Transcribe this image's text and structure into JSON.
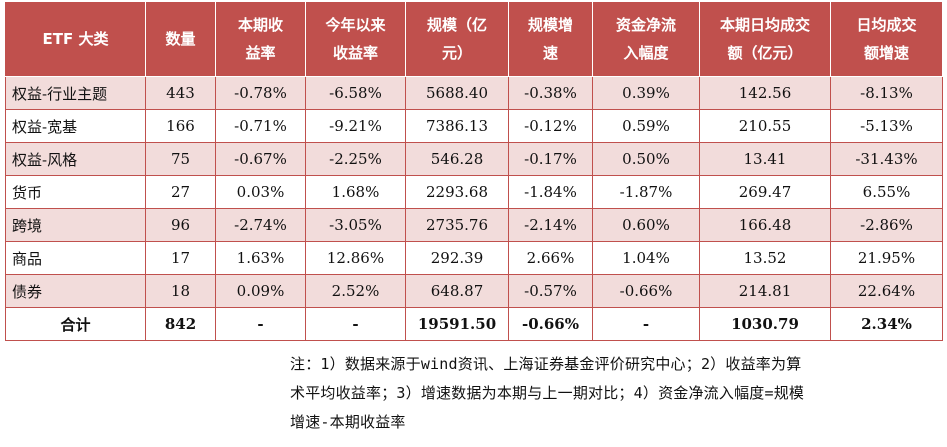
{
  "table": {
    "headers": [
      [
        "ETF 大类"
      ],
      [
        "数量"
      ],
      [
        "本期收",
        "益率"
      ],
      [
        "今年以来",
        "收益率"
      ],
      [
        "规模（亿",
        "元）"
      ],
      [
        "规模增",
        "速"
      ],
      [
        "资金净流",
        "入幅度"
      ],
      [
        "本期日均成交",
        "额（亿元）"
      ],
      [
        "日均成交",
        "额增速"
      ]
    ],
    "rows": [
      [
        "权益-行业主题",
        "443",
        "-0.78%",
        "-6.58%",
        "5688.40",
        "-0.38%",
        "0.39%",
        "142.56",
        "-8.13%"
      ],
      [
        "权益-宽基",
        "166",
        "-0.71%",
        "-9.21%",
        "7386.13",
        "-0.12%",
        "0.59%",
        "210.55",
        "-5.13%"
      ],
      [
        "权益-风格",
        "75",
        "-0.67%",
        "-2.25%",
        "546.28",
        "-0.17%",
        "0.50%",
        "13.41",
        "-31.43%"
      ],
      [
        "货币",
        "27",
        "0.03%",
        "1.68%",
        "2293.68",
        "-1.84%",
        "-1.87%",
        "269.47",
        "6.55%"
      ],
      [
        "跨境",
        "96",
        "-2.74%",
        "-3.05%",
        "2735.76",
        "-2.14%",
        "0.60%",
        "166.48",
        "-2.86%"
      ],
      [
        "商品",
        "17",
        "1.63%",
        "12.86%",
        "292.39",
        "2.66%",
        "1.04%",
        "13.52",
        "21.95%"
      ],
      [
        "债券",
        "18",
        "0.09%",
        "2.52%",
        "648.87",
        "-0.57%",
        "-0.66%",
        "214.81",
        "22.64%"
      ]
    ],
    "total": [
      "合计",
      "842",
      "-",
      "-",
      "19591.50",
      "-0.66%",
      "-",
      "1030.79",
      "2.34%"
    ]
  },
  "note": {
    "lines": [
      "注：1）数据来源于wind资讯、上海证券基金评价研究中心；2）收益率为算",
      "术平均收益率；3）增速数据为本期与上一期对比；4）资金净流入幅度=规模",
      "增速-本期收益率"
    ]
  },
  "colors": {
    "header_bg": "#c0504d",
    "stripe_bg": "#f2dcdb",
    "border": "#c0504d"
  }
}
